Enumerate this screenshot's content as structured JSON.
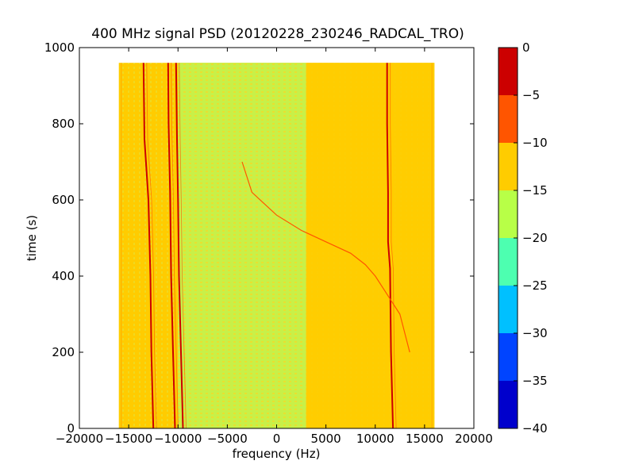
{
  "chart_data": {
    "type": "heatmap",
    "title": "400 MHz signal PSD (20120228_230246_RADCAL_TRO)",
    "xlabel": "frequency (Hz)",
    "ylabel": "time (s)",
    "xlim": [
      -20000,
      20000
    ],
    "ylim": [
      0,
      1000
    ],
    "x_ticks": [
      -20000,
      -15000,
      -10000,
      -5000,
      0,
      5000,
      10000,
      15000,
      20000
    ],
    "y_ticks": [
      0,
      200,
      400,
      600,
      800,
      1000
    ],
    "data_extent": {
      "x": [
        -16000,
        16000
      ],
      "y": [
        0,
        960
      ]
    },
    "colorbar": {
      "range": [
        -40,
        0
      ],
      "ticks": [
        0,
        -5,
        -10,
        -15,
        -20,
        -25,
        -30,
        -35,
        -40
      ],
      "levels": [
        {
          "from": -40,
          "to": -35,
          "color": "#0000cc"
        },
        {
          "from": -35,
          "to": -30,
          "color": "#0044ff"
        },
        {
          "from": -30,
          "to": -25,
          "color": "#00c0ff"
        },
        {
          "from": -25,
          "to": -20,
          "color": "#4dffb0"
        },
        {
          "from": -20,
          "to": -15,
          "color": "#b8ff47"
        },
        {
          "from": -15,
          "to": -10,
          "color": "#ffcc00"
        },
        {
          "from": -10,
          "to": -5,
          "color": "#ff5500"
        },
        {
          "from": -5,
          "to": 0,
          "color": "#cc0000"
        }
      ]
    },
    "background_level_color": "#ffcc00",
    "mid_band": {
      "x": [
        -10000,
        3000
      ],
      "color": "#c8f048"
    },
    "signal_traces": [
      {
        "level": -2.5,
        "points": [
          [
            -13500,
            960
          ],
          [
            -13400,
            760
          ],
          [
            -13000,
            600
          ],
          [
            -12800,
            400
          ],
          [
            -12700,
            200
          ],
          [
            -12500,
            0
          ]
        ]
      },
      {
        "level": -2.5,
        "points": [
          [
            -11000,
            960
          ],
          [
            -10950,
            800
          ],
          [
            -10800,
            620
          ],
          [
            -10700,
            400
          ],
          [
            -10500,
            200
          ],
          [
            -10300,
            0
          ]
        ]
      },
      {
        "level": -2.5,
        "points": [
          [
            -10200,
            960
          ],
          [
            -10100,
            760
          ],
          [
            -10000,
            600
          ],
          [
            -9900,
            400
          ],
          [
            -9700,
            200
          ],
          [
            -9500,
            0
          ]
        ]
      },
      {
        "level": -2.5,
        "points": [
          [
            11200,
            960
          ],
          [
            11200,
            800
          ],
          [
            11300,
            620
          ],
          [
            11300,
            490
          ],
          [
            11500,
            420
          ],
          [
            11600,
            200
          ],
          [
            11800,
            0
          ]
        ]
      },
      {
        "level": -7.5,
        "points": [
          [
            -3500,
            700
          ],
          [
            -2500,
            620
          ],
          [
            0,
            560
          ],
          [
            2500,
            520
          ],
          [
            5000,
            490
          ],
          [
            7500,
            460
          ],
          [
            9000,
            430
          ],
          [
            10000,
            400
          ],
          [
            11000,
            360
          ],
          [
            11500,
            340
          ],
          [
            12500,
            300
          ],
          [
            13500,
            200
          ]
        ]
      }
    ]
  }
}
